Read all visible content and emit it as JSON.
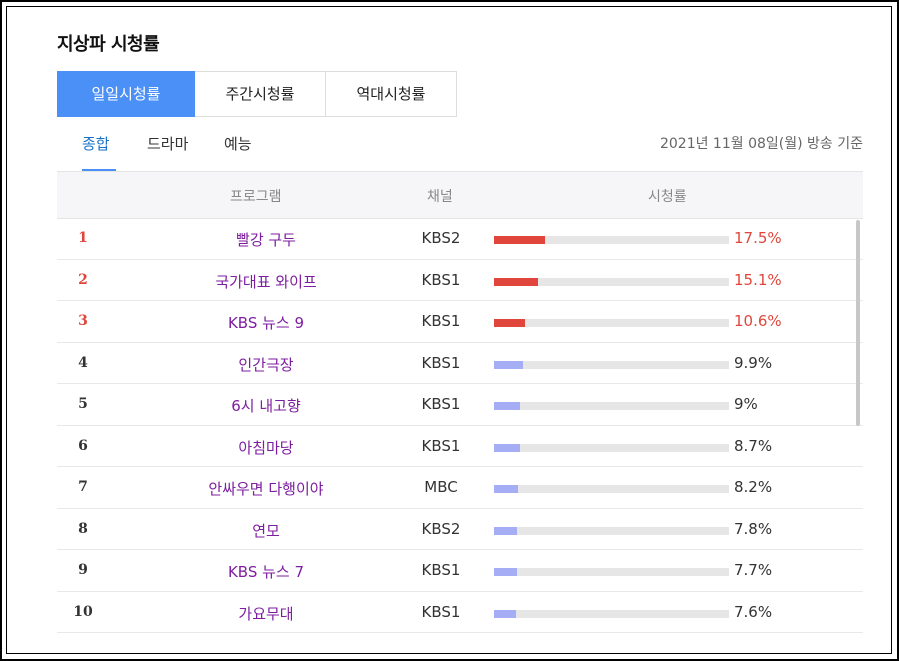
{
  "title": "지상파 시청률",
  "tabs": [
    {
      "label": "일일시청률",
      "active": true
    },
    {
      "label": "주간시청률",
      "active": false
    },
    {
      "label": "역대시청률",
      "active": false
    }
  ],
  "subtabs": [
    {
      "label": "종합",
      "active": true
    },
    {
      "label": "드라마",
      "active": false
    },
    {
      "label": "예능",
      "active": false
    }
  ],
  "date_note": "2021년 11월 08일(월) 방송 기준",
  "columns": {
    "program": "프로그램",
    "channel": "채널",
    "rating": "시청률"
  },
  "colors": {
    "hot": "#e0463b",
    "normal_bar": "#a5aef5",
    "bar_track": "#e6e6e6",
    "accent": "#4a90f7"
  },
  "rows": [
    {
      "rank": "1",
      "program": "빨강 구두",
      "channel": "KBS2",
      "rating": "17.5%",
      "value": 17.5,
      "hot": true
    },
    {
      "rank": "2",
      "program": "국가대표 와이프",
      "channel": "KBS1",
      "rating": "15.1%",
      "value": 15.1,
      "hot": true
    },
    {
      "rank": "3",
      "program": "KBS 뉴스 9",
      "channel": "KBS1",
      "rating": "10.6%",
      "value": 10.6,
      "hot": true
    },
    {
      "rank": "4",
      "program": "인간극장",
      "channel": "KBS1",
      "rating": "9.9%",
      "value": 9.9,
      "hot": false
    },
    {
      "rank": "5",
      "program": "6시 내고향",
      "channel": "KBS1",
      "rating": "9%",
      "value": 9.0,
      "hot": false
    },
    {
      "rank": "6",
      "program": "아침마당",
      "channel": "KBS1",
      "rating": "8.7%",
      "value": 8.7,
      "hot": false
    },
    {
      "rank": "7",
      "program": "안싸우면 다행이야",
      "channel": "MBC",
      "rating": "8.2%",
      "value": 8.2,
      "hot": false
    },
    {
      "rank": "8",
      "program": "연모",
      "channel": "KBS2",
      "rating": "7.8%",
      "value": 7.8,
      "hot": false
    },
    {
      "rank": "9",
      "program": "KBS 뉴스 7",
      "channel": "KBS1",
      "rating": "7.7%",
      "value": 7.7,
      "hot": false
    },
    {
      "rank": "10",
      "program": "가요무대",
      "channel": "KBS1",
      "rating": "7.6%",
      "value": 7.6,
      "hot": false
    }
  ]
}
